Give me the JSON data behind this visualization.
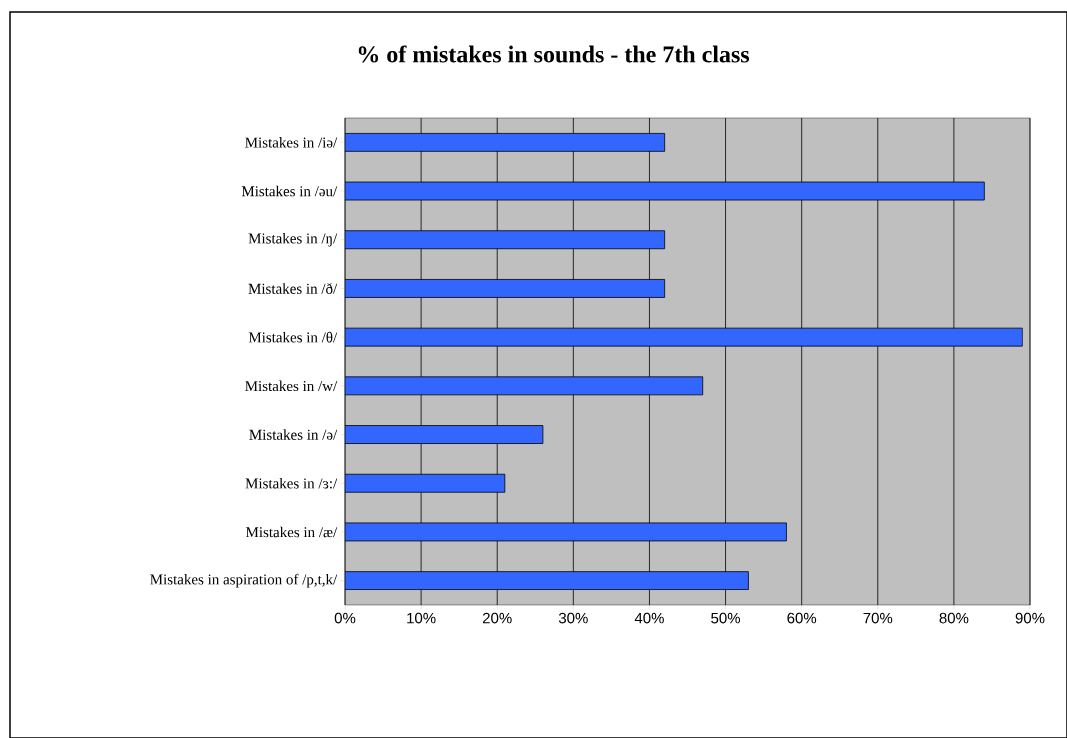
{
  "chart_data": {
    "type": "bar",
    "orientation": "horizontal",
    "title": "% of mistakes in sounds - the 7th class",
    "categories": [
      "Mistakes in /iə/",
      "Mistakes in /əu/",
      "Mistakes in /ŋ/",
      "Mistakes in /ð/",
      "Mistakes in /θ/",
      "Mistakes in /w/",
      "Mistakes in /ə/",
      "Mistakes in /ɜ:/",
      "Mistakes in /æ/",
      "Mistakes in aspiration of /p,t,k/"
    ],
    "values": [
      42,
      84,
      42,
      42,
      89,
      47,
      26,
      21,
      58,
      53
    ],
    "color": "#3366ff",
    "xlim": [
      0,
      90
    ],
    "xticks": [
      {
        "value": 0,
        "label": "0%"
      },
      {
        "value": 10,
        "label": "10%"
      },
      {
        "value": 20,
        "label": "20%"
      },
      {
        "value": 30,
        "label": "30%"
      },
      {
        "value": 40,
        "label": "40%"
      },
      {
        "value": 50,
        "label": "50%"
      },
      {
        "value": 60,
        "label": "60%"
      },
      {
        "value": 70,
        "label": "70%"
      },
      {
        "value": 80,
        "label": "80%"
      },
      {
        "value": 90,
        "label": "90%"
      }
    ],
    "grid": "x"
  }
}
